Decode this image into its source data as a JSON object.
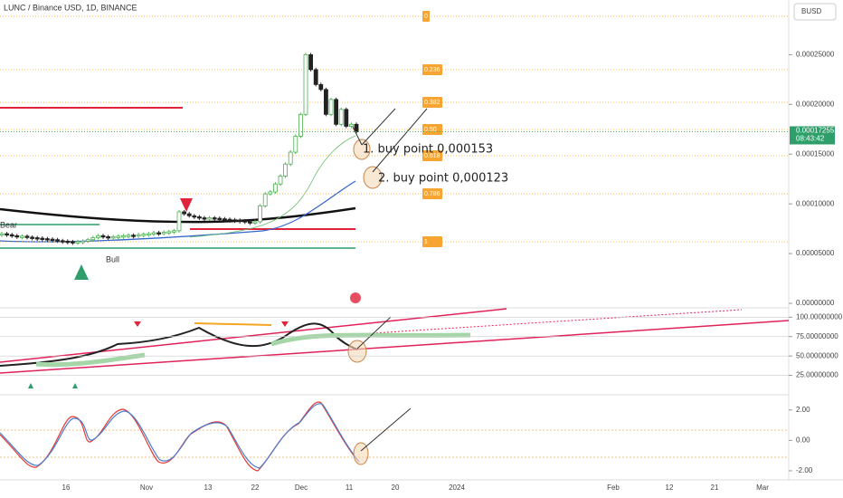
{
  "header": {
    "title": "LUNC / Binance USD, 1D, BINANCE",
    "currency": "BUSD"
  },
  "chart_data": {
    "type": "candlestick",
    "closes": [
      7e-05,
      6.9e-05,
      6.8e-05,
      6.7e-05,
      6.75e-05,
      6.65e-05,
      6.6e-05,
      6.55e-05,
      6.5e-05,
      6.45e-05,
      6.4e-05,
      6.3e-05,
      6.25e-05,
      6.2e-05,
      6.15e-05,
      6.2e-05,
      6.25e-05,
      6.4e-05,
      6.6e-05,
      6.8e-05,
      6.7e-05,
      6.65e-05,
      6.7e-05,
      6.75e-05,
      6.8e-05,
      6.85e-05,
      6.8e-05,
      6.9e-05,
      6.95e-05,
      7e-05,
      7.1e-05,
      7.05e-05,
      7.15e-05,
      7.2e-05,
      7.3e-05,
      9.2e-05,
      9e-05,
      8.8e-05,
      8.7e-05,
      8.6e-05,
      8.5e-05,
      8.6e-05,
      8.55e-05,
      8.5e-05,
      8.45e-05,
      8.4e-05,
      8.35e-05,
      8.3e-05,
      8.2e-05,
      8.1e-05,
      8.2e-05,
      9.8e-05,
      0.00011,
      0.000112,
      0.00012,
      0.000128,
      0.00014,
      0.000152,
      0.000168,
      0.00019,
      0.00025,
      0.000235,
      0.00022,
      0.000215,
      0.00019,
      0.000205,
      0.00018,
      0.000195,
      0.000178,
      0.00018,
      0.00017255
    ],
    "up_color": "#4caf50",
    "down_color": "#222222",
    "ylim": [
      0,
      0.000305
    ],
    "yticks": [
      {
        "value": 0.00025,
        "label": "0.00025000"
      },
      {
        "value": 0.0002,
        "label": "0.00020000"
      },
      {
        "value": 0.00015,
        "label": "0.00015000"
      },
      {
        "value": 0.0001,
        "label": "0.00010000"
      },
      {
        "value": 5e-05,
        "label": "0.00005000"
      },
      {
        "value": 0,
        "label": "0.00000000"
      }
    ],
    "last_price": {
      "value": 0.00017255,
      "label": "0.00017255"
    },
    "countdown": "08:43:42",
    "x_labels": [
      "16",
      "Nov",
      "13",
      "22",
      "Dec",
      "11",
      "20",
      "2024",
      "Feb",
      "12",
      "21",
      "Mar"
    ]
  },
  "fib_levels": [
    "0",
    "0.236",
    "0.382",
    "0.50",
    "0.618",
    "0.786",
    "1"
  ],
  "annotations": [
    "1. buy point 0,000153",
    "2. buy point 0,000123"
  ],
  "markers": [
    "Bear",
    "Bull"
  ],
  "rsi_pane": {
    "ylim": [
      0,
      112
    ],
    "yticks": [
      {
        "value": 100,
        "label": "100.00000000"
      },
      {
        "value": 75,
        "label": "75.00000000"
      },
      {
        "value": 50,
        "label": "50.00000000"
      },
      {
        "value": 25,
        "label": "25.00000000"
      }
    ]
  },
  "osc_pane": {
    "ylim": [
      -2.6,
      3
    ],
    "yticks": [
      {
        "value": 2,
        "label": "2.00"
      },
      {
        "value": 0,
        "label": "0.00"
      },
      {
        "value": -2,
        "label": "-2.00"
      }
    ]
  }
}
